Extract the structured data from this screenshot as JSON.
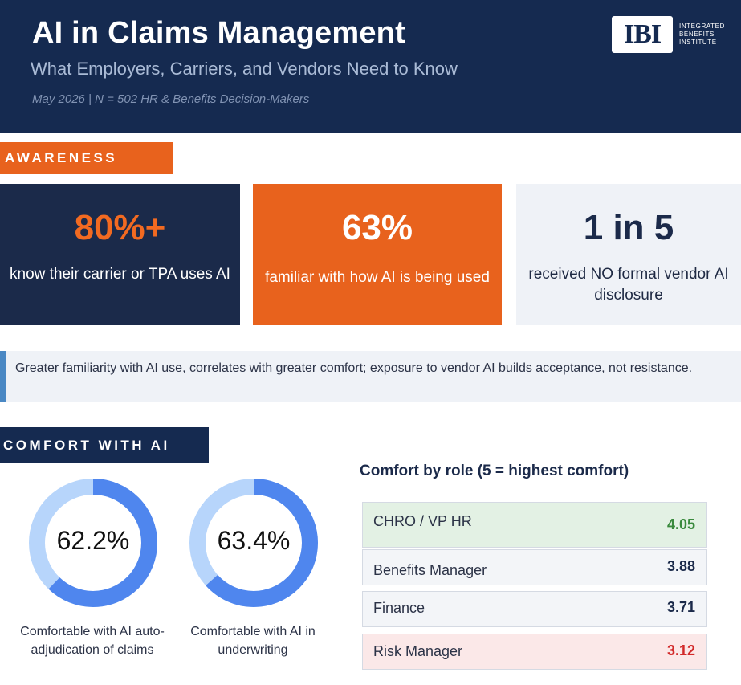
{
  "header": {
    "title": "AI in Claims Management",
    "subtitle": "What Employers, Carriers, and Vendors Need to Know",
    "meta": "May 2026  |  N = 502 HR & Benefits Decision-Makers",
    "logo_mark": "IBI",
    "logo_text": "INTEGRATED\nBENEFITS\nINSTITUTE"
  },
  "awareness": {
    "section_label": "AWARENESS",
    "stats": [
      {
        "value": "80%+",
        "description": "know their carrier or TPA uses AI"
      },
      {
        "value": "63%",
        "description": "familiar with how AI is being used"
      },
      {
        "value": "1 in 5",
        "description": "received NO formal vendor AI disclosure"
      }
    ],
    "callout": "Greater familiarity with AI use, correlates with greater comfort; exposure to vendor AI builds acceptance, not resistance."
  },
  "comfort": {
    "section_label": "COMFORT WITH AI",
    "donuts": [
      {
        "value": 62.2,
        "label": "62.2%",
        "caption": "Comfortable with AI auto-adjudication of claims"
      },
      {
        "value": 63.4,
        "label": "63.4%",
        "caption": "Comfortable with AI in underwriting"
      }
    ],
    "colors": {
      "fill": "#4f86ee",
      "track": "#b7d5fb"
    },
    "role_title": "Comfort by role (5 = highest comfort)",
    "roles": [
      {
        "name": "CHRO / VP HR",
        "score": "4.05",
        "status": "highest",
        "color": "#3a8a3d"
      },
      {
        "name": "Benefits Manager",
        "score": "3.88",
        "status": "neutral",
        "color": "#1b2a4a"
      },
      {
        "name": "Finance",
        "score": "3.71",
        "status": "neutral",
        "color": "#1b2a4a"
      },
      {
        "name": "Risk Manager",
        "score": "3.12",
        "status": "lowest",
        "color": "#d22a2a"
      }
    ]
  }
}
